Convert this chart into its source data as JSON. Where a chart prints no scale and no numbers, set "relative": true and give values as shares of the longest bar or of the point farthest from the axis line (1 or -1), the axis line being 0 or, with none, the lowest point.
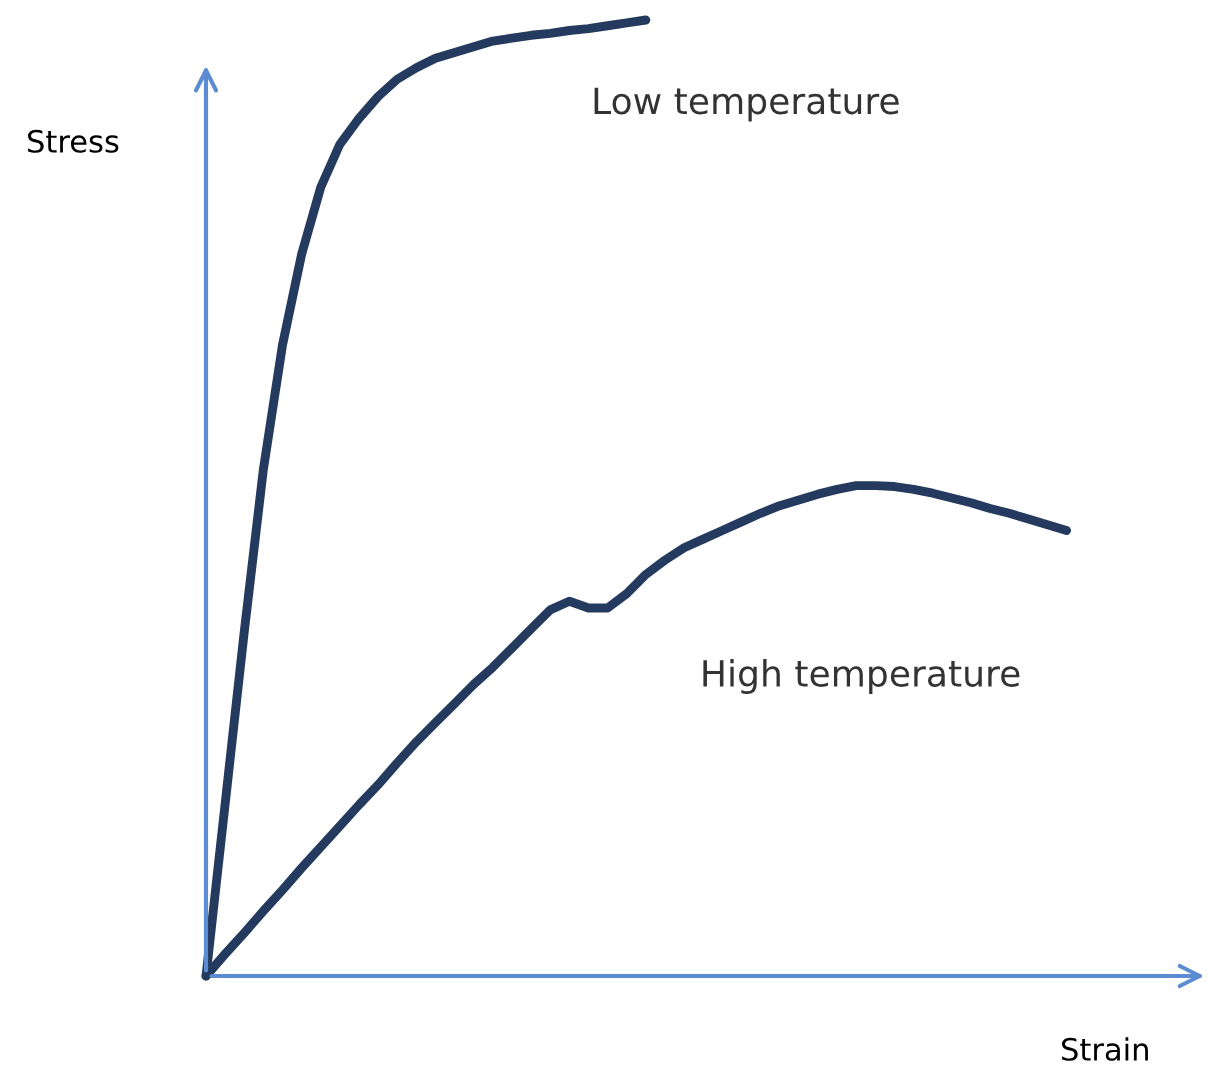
{
  "chart_data": {
    "type": "line",
    "relative": true,
    "xlabel": "Strain",
    "ylabel": "Stress",
    "marker": "none",
    "line_style": "solid",
    "legend": false,
    "categories": [
      null,
      null,
      null,
      null,
      null,
      null,
      null,
      null,
      null,
      null,
      null,
      null,
      null,
      null,
      null,
      null,
      null,
      null,
      null,
      null,
      null,
      null,
      null,
      null,
      null,
      null,
      null,
      null,
      null,
      null,
      null,
      null,
      null,
      null,
      null,
      null,
      null,
      null,
      null,
      null,
      null,
      null,
      null,
      null,
      null,
      null
    ],
    "series": [
      {
        "name": "Low temperature",
        "color": "#243a5e",
        "values": [
          0,
          0.18,
          0.36,
          0.53,
          0.66,
          0.755,
          0.825,
          0.87,
          0.897,
          0.92,
          0.938,
          0.95,
          0.96,
          0.966,
          0.972,
          0.978,
          0.981,
          0.984,
          0.986,
          0.989,
          0.991,
          0.994,
          0.997,
          1.0,
          null,
          null,
          null,
          null,
          null,
          null,
          null,
          null,
          null,
          null,
          null,
          null,
          null,
          null,
          null,
          null,
          null,
          null,
          null,
          null,
          null,
          null
        ]
      },
      {
        "name": "High temperature",
        "color": "#243a5e",
        "values": [
          0,
          0.023,
          0.045,
          0.068,
          0.09,
          0.113,
          0.135,
          0.157,
          0.179,
          0.2,
          0.223,
          0.245,
          0.265,
          0.285,
          0.305,
          0.323,
          0.343,
          0.363,
          0.383,
          0.392,
          0.385,
          0.385,
          0.4,
          0.42,
          0.435,
          0.448,
          0.457,
          0.466,
          0.475,
          0.484,
          0.492,
          0.498,
          0.504,
          0.509,
          0.513,
          0.513,
          0.512,
          0.509,
          0.505,
          0.5,
          0.495,
          0.489,
          0.484,
          0.478,
          0.472,
          0.466
        ]
      }
    ]
  }
}
